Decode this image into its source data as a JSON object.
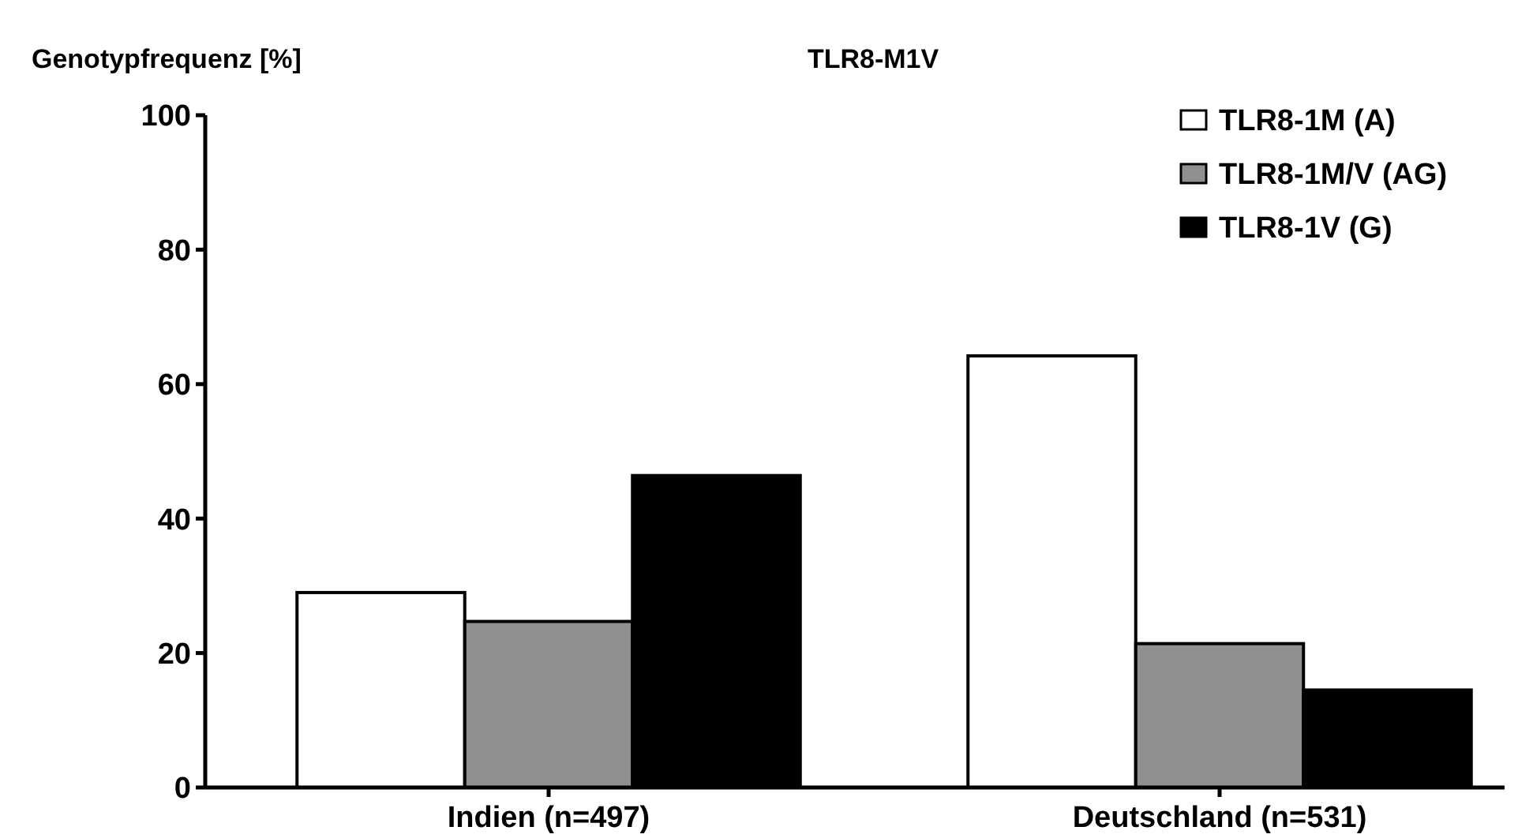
{
  "chart_data": {
    "type": "bar",
    "title": "TLR8-M1V",
    "ylabel": "Genotypfrequenz [%]",
    "categories": [
      "Indien (n=497)",
      "Deutschland (n=531)"
    ],
    "series": [
      {
        "name": "TLR8-1M (A)",
        "color": "#ffffff",
        "values": [
          29.0,
          64.2
        ]
      },
      {
        "name": "TLR8-1M/V (AG)",
        "color": "#909090",
        "values": [
          24.7,
          21.4
        ]
      },
      {
        "name": "TLR8-1V (G)",
        "color": "#000000",
        "values": [
          46.4,
          14.5
        ]
      }
    ],
    "ylim": [
      0,
      100
    ],
    "yticks": [
      0,
      20,
      40,
      60,
      80,
      100
    ],
    "legend": "top right"
  }
}
